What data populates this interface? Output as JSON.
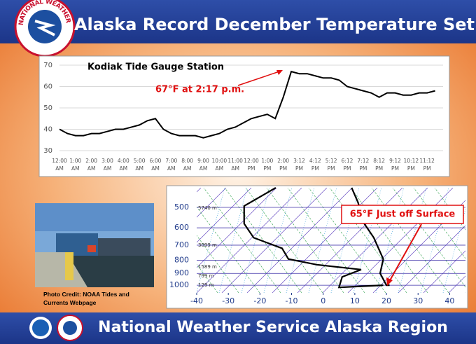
{
  "header": {
    "title": "Alaska Record December Temperature Set",
    "logo_text": "NATIONAL WEATHER SERVICE"
  },
  "footer": {
    "title": "National Weather Service Alaska Region"
  },
  "photo_credit": "Photo Credit: NOAA Tides and Currents Webpage",
  "chart_data": [
    {
      "type": "line",
      "title": "Kodiak Tide Gauge Station",
      "annotation": "67°F at 2:17 p.m.",
      "color": "#000000",
      "grid": true,
      "categories": [
        "12:00 AM",
        null,
        "1:00 AM",
        null,
        "2:00 AM",
        null,
        "3:00 AM",
        null,
        "4:00 AM",
        null,
        "5:00 AM",
        null,
        "6:00 AM",
        null,
        "7:00 AM",
        null,
        "8:00 AM",
        null,
        "9:00 AM",
        null,
        "10:00 AM",
        null,
        "11:00 AM",
        null,
        "12:00 PM",
        null,
        "1:00 PM",
        null,
        "2:00 PM",
        null,
        "3:12 PM",
        null,
        "4:12 PM",
        null,
        "5:12 PM",
        null,
        "6:12 PM",
        null,
        "7:12 PM",
        null,
        "8:12 PM",
        null,
        "9:12 PM",
        null,
        "10:12 PM",
        null,
        "11:12 PM",
        null
      ],
      "values": [
        40,
        38,
        37,
        37,
        38,
        38,
        39,
        40,
        40,
        41,
        42,
        44,
        45,
        40,
        38,
        37,
        37,
        37,
        36,
        37,
        38,
        40,
        41,
        43,
        45,
        46,
        47,
        45,
        55,
        67,
        66,
        66,
        65,
        64,
        64,
        63,
        60,
        59,
        58,
        57,
        55,
        57,
        57,
        56,
        56,
        57,
        57,
        58
      ],
      "ylim": [
        30,
        70
      ],
      "yticks": [
        30,
        40,
        50,
        60,
        70
      ]
    },
    {
      "type": "sounding",
      "annotation": "65°F Just off Surface",
      "log_y": true,
      "height_labels": [
        "5740 m",
        "3099 m",
        "1589 m",
        "799 m",
        "129 m"
      ],
      "series": [
        {
          "color": "#000000",
          "x": [
            -15,
            -25,
            -25,
            -22,
            -13,
            -11,
            -2,
            12,
            6,
            5,
            19
          ],
          "values": [
            420,
            494,
            578,
            655,
            720,
            792,
            833,
            870,
            928,
            1019,
            1000
          ]
        },
        {
          "color": "#000000",
          "x": [
            9,
            11,
            13,
            16,
            19,
            18,
            20,
            21
          ],
          "values": [
            420,
            478,
            578,
            655,
            792,
            899,
            1000,
            1000
          ]
        }
      ],
      "xlim": [
        -40,
        45
      ],
      "xticks": [
        -40,
        -30,
        -20,
        -10,
        0,
        10,
        20,
        30,
        40
      ],
      "ylim": [
        1070,
        420
      ],
      "yticks": [
        500,
        600,
        700,
        800,
        900,
        1000
      ]
    }
  ]
}
